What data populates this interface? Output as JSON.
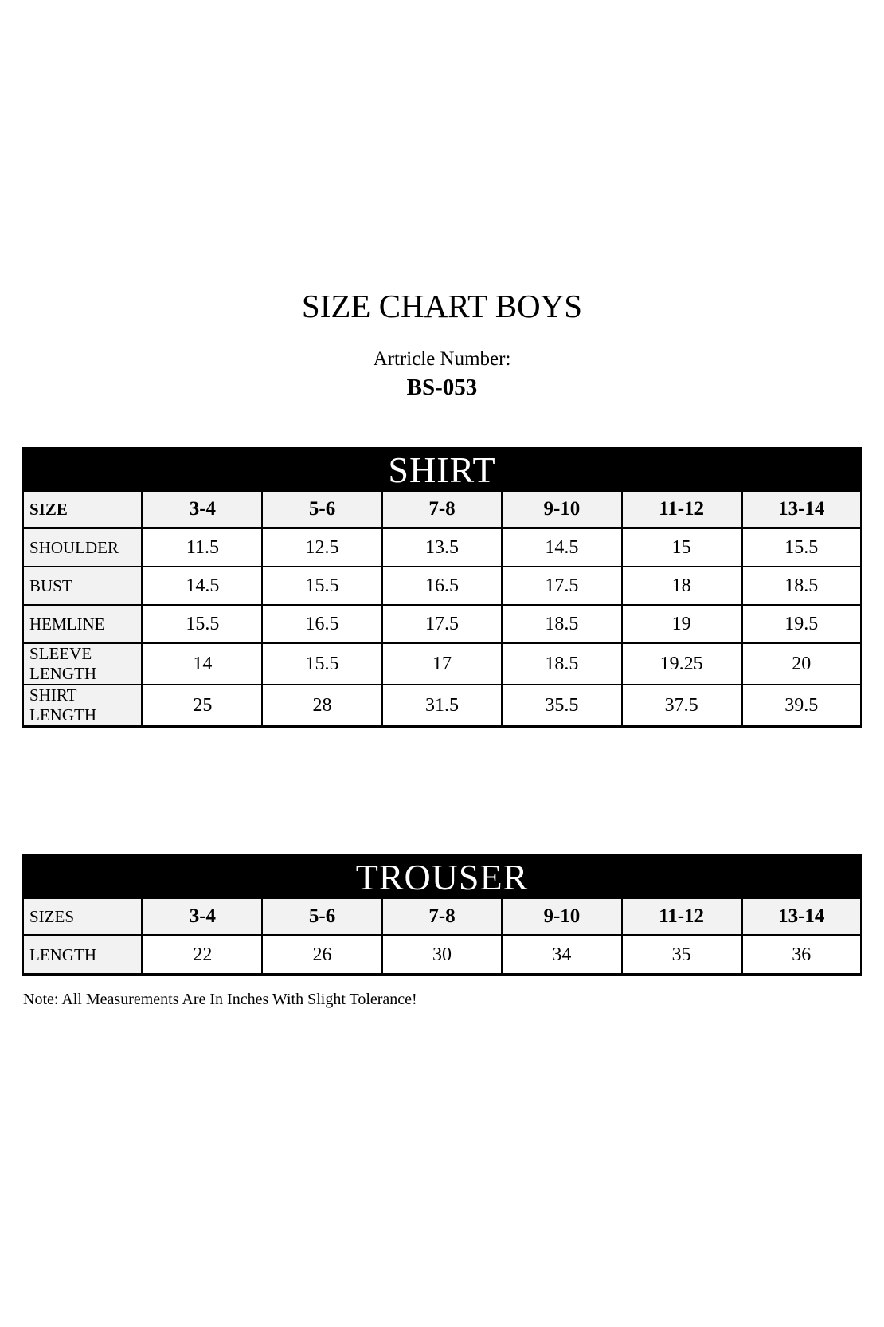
{
  "page": {
    "title": "SIZE CHART BOYS",
    "article_label": "Artricle Number:",
    "article_number": "BS-053",
    "note": "Note: All Measurements Are In Inches With Slight Tolerance!"
  },
  "colors": {
    "band_background": "#000000",
    "band_text": "#ffffff",
    "label_cell_background": "#f2f2f2",
    "border": "#000000",
    "page_background": "#ffffff"
  },
  "shirt_table": {
    "title": "SHIRT",
    "header_label": "SIZE",
    "sizes": [
      "3-4",
      "5-6",
      "7-8",
      "9-10",
      "11-12",
      "13-14"
    ],
    "rows": [
      {
        "label": "SHOULDER",
        "values": [
          "11.5",
          "12.5",
          "13.5",
          "14.5",
          "15",
          "15.5"
        ]
      },
      {
        "label": "BUST",
        "values": [
          "14.5",
          "15.5",
          "16.5",
          "17.5",
          "18",
          "18.5"
        ]
      },
      {
        "label": "HEMLINE",
        "values": [
          "15.5",
          "16.5",
          "17.5",
          "18.5",
          "19",
          "19.5"
        ]
      },
      {
        "label": "SLEEVE LENGTH",
        "values": [
          "14",
          "15.5",
          "17",
          "18.5",
          "19.25",
          "20"
        ]
      },
      {
        "label": "SHIRT LENGTH",
        "values": [
          "25",
          "28",
          "31.5",
          "35.5",
          "37.5",
          "39.5"
        ]
      }
    ]
  },
  "trouser_table": {
    "title": "TROUSER",
    "header_label": "SIZES",
    "sizes": [
      "3-4",
      "5-6",
      "7-8",
      "9-10",
      "11-12",
      "13-14"
    ],
    "rows": [
      {
        "label": "LENGTH",
        "values": [
          "22",
          "26",
          "30",
          "34",
          "35",
          "36"
        ]
      }
    ]
  }
}
